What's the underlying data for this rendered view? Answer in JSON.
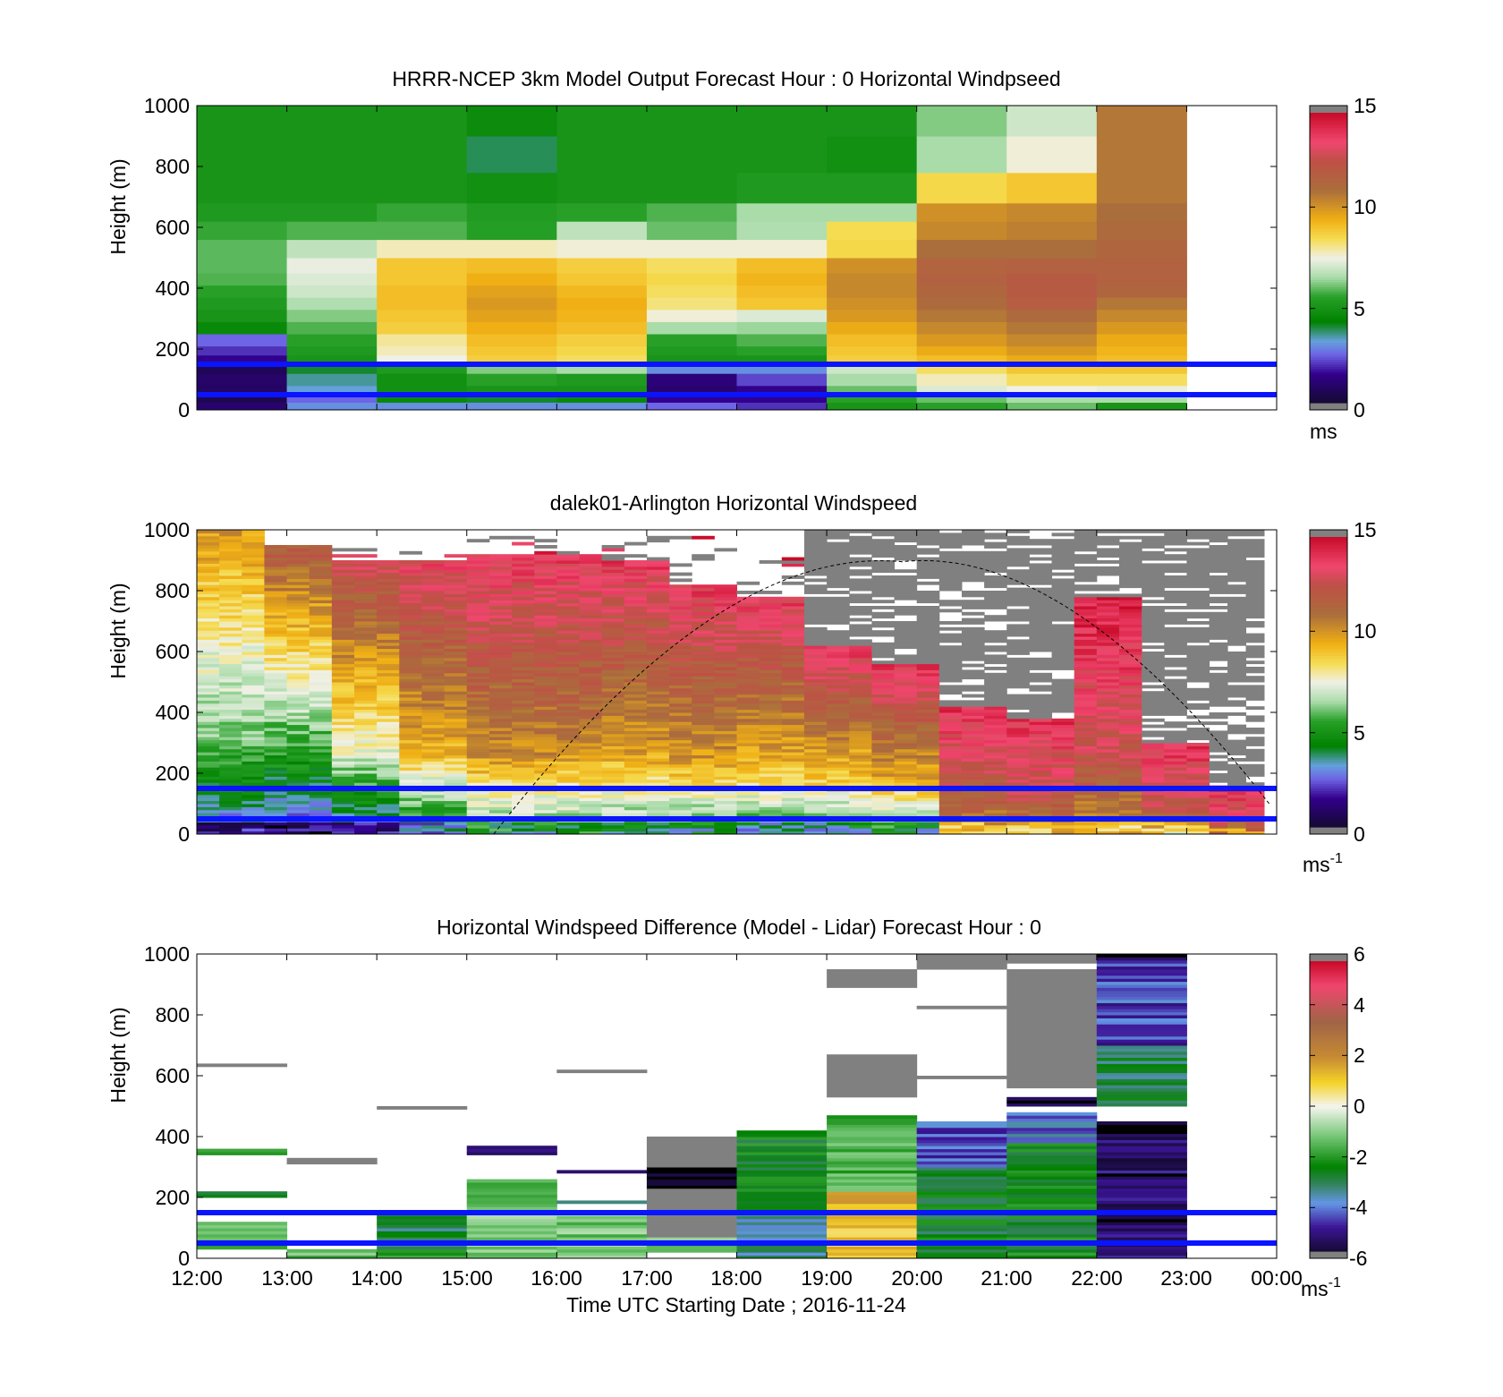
{
  "figure": {
    "xaxis": {
      "label": "Time UTC  Starting Date ; 2016-11-24",
      "tick_labels": [
        "12:00",
        "13:00",
        "14:00",
        "15:00",
        "16:00",
        "17:00",
        "18:00",
        "19:00",
        "20:00",
        "21:00",
        "22:00",
        "23:00",
        "00:00"
      ]
    }
  },
  "chart_data": [
    {
      "type": "heatmap",
      "title": "HRRR-NCEP 3km Model Output   Forecast Hour : 0 Horizontal Windpseed",
      "ylabel": "Height (m)",
      "xlim": [
        "12:00",
        "00:00"
      ],
      "ylim": [
        0,
        1000
      ],
      "y_tick_labels": [
        "0",
        "200",
        "400",
        "600",
        "800",
        "1000"
      ],
      "colorbar": {
        "range": [
          0,
          15
        ],
        "tick_labels": [
          "0",
          "5",
          "10",
          "15"
        ],
        "unit": "ms",
        "unit_sup": ""
      },
      "scale": "wind",
      "hlines": [
        50,
        150
      ],
      "columns": [
        {
          "time": "12:00",
          "levels": [
            0,
            25,
            50,
            80,
            120,
            150,
            180,
            210,
            250,
            290,
            330,
            370,
            410,
            450,
            500,
            560,
            620,
            680,
            780,
            900,
            1000
          ],
          "values": [
            1.0,
            0.5,
            0.8,
            0.9,
            0.6,
            1.5,
            2.0,
            2.5,
            4.5,
            5.0,
            5.2,
            5.5,
            5.8,
            5.9,
            5.9,
            5.6,
            5.2,
            5.0,
            5.0,
            5.0
          ]
        },
        {
          "time": "13:00",
          "levels": [
            0,
            25,
            50,
            80,
            120,
            150,
            180,
            210,
            250,
            290,
            330,
            370,
            410,
            450,
            500,
            560,
            620,
            680,
            780,
            900,
            1000
          ],
          "values": [
            3.0,
            2.5,
            3.2,
            3.5,
            4.0,
            5.0,
            5.2,
            5.5,
            5.8,
            6.2,
            6.6,
            7.0,
            7.2,
            7.4,
            6.8,
            5.8,
            5.2,
            5.0,
            5.0,
            5.0
          ]
        },
        {
          "time": "14:00",
          "levels": [
            0,
            25,
            50,
            80,
            120,
            150,
            180,
            210,
            250,
            290,
            330,
            370,
            410,
            450,
            500,
            560,
            620,
            680,
            780,
            900,
            1000
          ],
          "values": [
            3.0,
            4.5,
            4.8,
            4.8,
            5.2,
            7.5,
            7.8,
            8.0,
            8.8,
            9.0,
            9.2,
            9.2,
            9.0,
            9.0,
            7.8,
            5.8,
            5.6,
            5.0,
            5.0,
            5.0
          ]
        },
        {
          "time": "15:00",
          "levels": [
            0,
            25,
            50,
            80,
            120,
            150,
            180,
            210,
            250,
            290,
            330,
            370,
            410,
            450,
            500,
            560,
            620,
            680,
            780,
            900,
            1000
          ],
          "values": [
            3.0,
            4.0,
            5.0,
            5.5,
            6.2,
            8.8,
            9.0,
            9.2,
            9.5,
            9.8,
            10.0,
            9.8,
            9.5,
            9.2,
            7.8,
            5.4,
            5.3,
            4.8,
            3.8,
            4.6
          ]
        },
        {
          "time": "16:00",
          "levels": [
            0,
            25,
            50,
            80,
            120,
            150,
            180,
            210,
            250,
            290,
            330,
            370,
            410,
            450,
            500,
            560,
            620,
            680,
            780,
            900,
            1000
          ],
          "values": [
            3.0,
            4.5,
            5.0,
            5.2,
            6.5,
            8.4,
            8.6,
            8.8,
            9.2,
            9.4,
            9.5,
            9.3,
            9.0,
            8.8,
            7.6,
            6.8,
            5.5,
            5.0,
            5.0,
            5.0
          ]
        },
        {
          "time": "17:00",
          "levels": [
            0,
            25,
            50,
            80,
            120,
            150,
            180,
            210,
            250,
            290,
            330,
            370,
            410,
            450,
            500,
            560,
            620,
            680,
            780,
            900,
            1000
          ],
          "values": [
            2.5,
            1.5,
            1.0,
            1.2,
            3.0,
            5.0,
            5.2,
            5.5,
            6.5,
            7.6,
            8.2,
            8.4,
            8.6,
            8.4,
            7.6,
            6.0,
            5.8,
            5.0,
            5.0,
            5.0
          ]
        },
        {
          "time": "18:00",
          "levels": [
            0,
            25,
            50,
            80,
            120,
            150,
            180,
            210,
            250,
            290,
            330,
            370,
            410,
            450,
            500,
            560,
            620,
            680,
            780,
            900,
            1000
          ],
          "values": [
            2.0,
            1.5,
            1.5,
            2.2,
            3.0,
            5.0,
            5.5,
            5.8,
            6.4,
            7.2,
            9.0,
            9.2,
            9.4,
            9.2,
            7.6,
            6.6,
            6.5,
            5.2,
            5.0,
            5.0
          ]
        },
        {
          "time": "19:00",
          "levels": [
            0,
            25,
            50,
            80,
            120,
            150,
            180,
            210,
            250,
            290,
            330,
            370,
            410,
            450,
            500,
            560,
            620,
            680,
            780,
            900,
            1000
          ],
          "values": [
            5.0,
            5.5,
            6.0,
            6.5,
            7.0,
            8.8,
            9.0,
            9.2,
            9.6,
            10.0,
            10.2,
            10.4,
            10.4,
            10.2,
            8.6,
            8.5,
            6.5,
            5.2,
            4.8,
            5.0
          ]
        },
        {
          "time": "20:00",
          "levels": [
            0,
            25,
            50,
            80,
            120,
            150,
            180,
            210,
            250,
            290,
            330,
            370,
            410,
            450,
            500,
            560,
            620,
            680,
            780,
            900,
            1000
          ],
          "values": [
            5.5,
            6.0,
            7.2,
            7.8,
            8.4,
            9.2,
            9.6,
            10.0,
            10.4,
            10.8,
            11.2,
            11.4,
            11.6,
            11.5,
            11.0,
            10.4,
            10.2,
            8.6,
            6.5,
            6.2
          ]
        },
        {
          "time": "21:00",
          "levels": [
            0,
            25,
            50,
            80,
            120,
            150,
            180,
            210,
            250,
            290,
            330,
            370,
            410,
            450,
            500,
            560,
            620,
            680,
            780,
            900,
            1000
          ],
          "values": [
            6.0,
            6.5,
            7.5,
            8.4,
            9.0,
            9.6,
            10.0,
            10.4,
            10.8,
            11.2,
            11.8,
            12.0,
            12.0,
            11.6,
            11.0,
            10.6,
            10.4,
            9.0,
            7.6,
            7.0
          ]
        },
        {
          "time": "22:00",
          "levels": [
            0,
            25,
            50,
            80,
            120,
            150,
            180,
            210,
            250,
            290,
            330,
            370,
            410,
            450,
            500,
            560,
            620,
            680,
            780,
            900,
            1000
          ],
          "values": [
            5.0,
            6.5,
            7.4,
            8.4,
            9.0,
            9.2,
            9.4,
            9.6,
            10.0,
            10.4,
            10.8,
            11.4,
            11.6,
            11.6,
            11.4,
            11.2,
            11.0,
            10.8,
            10.8,
            10.8
          ]
        }
      ]
    },
    {
      "type": "heatmap",
      "title": "dalek01-Arlington  Horizontal Windspeed",
      "ylabel": "Height (m)",
      "xlim": [
        "12:00",
        "00:00"
      ],
      "ylim": [
        0,
        1000
      ],
      "y_tick_labels": [
        "0",
        "200",
        "400",
        "600",
        "800",
        "1000"
      ],
      "colorbar": {
        "range": [
          0,
          15
        ],
        "tick_labels": [
          "0",
          "5",
          "10",
          "15"
        ],
        "unit": "ms",
        "unit_sup": "-1"
      },
      "scale": "wind",
      "hlines": [
        50,
        150
      ],
      "arc": {
        "start": [
          "15:18",
          0
        ],
        "peak": [
          "19:50",
          895
        ],
        "end": [
          "23:55",
          100
        ]
      },
      "profiles": [
        {
          "time": "12:00",
          "top": 1000,
          "coverage": 0.7,
          "valid_top": 1000,
          "low": 2.5,
          "mid": 6.0,
          "high": 10.0
        },
        {
          "time": "12:45",
          "top": 950,
          "coverage": 0.45,
          "valid_top": 980,
          "low": 2.0,
          "mid": 5.5,
          "high": 12.0
        },
        {
          "time": "13:30",
          "top": 900,
          "coverage": 0.35,
          "valid_top": 980,
          "low": 2.5,
          "mid": 7.5,
          "high": 13.0
        },
        {
          "time": "14:15",
          "top": 900,
          "coverage": 0.35,
          "valid_top": 980,
          "low": 4.0,
          "mid": 9.5,
          "high": 13.5
        },
        {
          "time": "15:00",
          "top": 920,
          "coverage": 0.35,
          "valid_top": 980,
          "low": 5.5,
          "mid": 10.5,
          "high": 13.8
        },
        {
          "time": "15:45",
          "top": 920,
          "coverage": 0.4,
          "valid_top": 980,
          "low": 5.5,
          "mid": 10.5,
          "high": 13.8
        },
        {
          "time": "16:30",
          "top": 900,
          "coverage": 0.35,
          "valid_top": 980,
          "low": 5.5,
          "mid": 10.0,
          "high": 13.8
        },
        {
          "time": "17:15",
          "top": 820,
          "coverage": 0.45,
          "valid_top": 980,
          "low": 5.0,
          "mid": 10.0,
          "high": 13.8
        },
        {
          "time": "18:00",
          "top": 780,
          "coverage": 0.5,
          "valid_top": 930,
          "low": 5.0,
          "mid": 9.5,
          "high": 13.8
        },
        {
          "time": "18:45",
          "top": 620,
          "coverage": 0.95,
          "valid_top": 620,
          "low": 5.0,
          "mid": 9.0,
          "high": 14.0
        },
        {
          "time": "19:30",
          "top": 560,
          "coverage": 0.95,
          "valid_top": 560,
          "low": 5.5,
          "mid": 9.5,
          "high": 14.0
        },
        {
          "time": "20:15",
          "top": 420,
          "coverage": 0.95,
          "valid_top": 420,
          "low": 10.0,
          "mid": 12.0,
          "high": 14.0
        },
        {
          "time": "21:00",
          "top": 380,
          "coverage": 0.95,
          "valid_top": 380,
          "low": 10.0,
          "mid": 12.5,
          "high": 14.0
        },
        {
          "time": "21:45",
          "top": 780,
          "coverage": 0.95,
          "valid_top": 800,
          "low": 10.0,
          "mid": 12.5,
          "high": 14.5
        },
        {
          "time": "22:30",
          "top": 300,
          "coverage": 0.95,
          "valid_top": 300,
          "low": 10.0,
          "mid": 12.5,
          "high": 14.0
        },
        {
          "time": "23:15",
          "top": 160,
          "coverage": 0.95,
          "valid_top": 160,
          "low": 12.0,
          "mid": 13.0,
          "high": 14.0
        }
      ]
    },
    {
      "type": "heatmap",
      "title": "Horizontal Windspeed Difference (Model - Lidar) Forecast Hour : 0",
      "ylabel": "Height (m)",
      "xlim": [
        "12:00",
        "00:00"
      ],
      "ylim": [
        0,
        1000
      ],
      "y_tick_labels": [
        "0",
        "200",
        "400",
        "600",
        "800",
        "1000"
      ],
      "colorbar": {
        "range": [
          -6,
          6
        ],
        "tick_labels": [
          "-6",
          "-4",
          "-2",
          "0",
          "2",
          "4",
          "6"
        ],
        "unit": "ms",
        "unit_sup": "-1"
      },
      "scale": "diff",
      "hlines": [
        50,
        150
      ],
      "columns": [
        {
          "time": "12:00",
          "segments": [
            [
              30,
              120,
              -1.6
            ],
            [
              200,
              220,
              -3
            ],
            [
              340,
              360,
              -2.5
            ],
            [
              630,
              640,
              null
            ]
          ]
        },
        {
          "time": "13:00",
          "segments": [
            [
              0,
              30,
              -1.5
            ],
            [
              310,
              330,
              null
            ]
          ]
        },
        {
          "time": "14:00",
          "segments": [
            [
              0,
              30,
              -1.8
            ],
            [
              30,
              150,
              -3
            ],
            [
              490,
              500,
              null
            ]
          ]
        },
        {
          "time": "15:00",
          "segments": [
            [
              0,
              150,
              -1.0
            ],
            [
              160,
              260,
              -1.5
            ],
            [
              340,
              370,
              -5.5
            ]
          ]
        },
        {
          "time": "16:00",
          "segments": [
            [
              0,
              150,
              -1.2
            ],
            [
              180,
              190,
              -3
            ],
            [
              280,
              290,
              -5
            ],
            [
              610,
              620,
              null
            ]
          ]
        },
        {
          "time": "17:00",
          "segments": [
            [
              20,
              70,
              -1.5
            ],
            [
              70,
              230,
              null
            ],
            [
              230,
              300,
              -6
            ],
            [
              300,
              400,
              null
            ]
          ]
        },
        {
          "time": "18:00",
          "segments": [
            [
              0,
              150,
              -3.5
            ],
            [
              150,
              420,
              -2.6
            ]
          ]
        },
        {
          "time": "19:00",
          "segments": [
            [
              0,
              30,
              1.0
            ],
            [
              30,
              220,
              1.2
            ],
            [
              220,
              470,
              -1.6
            ],
            [
              530,
              670,
              null
            ],
            [
              890,
              950,
              null
            ]
          ]
        },
        {
          "time": "20:00",
          "segments": [
            [
              0,
              300,
              -2.7
            ],
            [
              300,
              450,
              -4.5
            ],
            [
              590,
              600,
              null
            ],
            [
              820,
              830,
              null
            ],
            [
              950,
              1000,
              null
            ]
          ]
        },
        {
          "time": "21:00",
          "segments": [
            [
              0,
              380,
              -2.6
            ],
            [
              380,
              480,
              -4.2
            ],
            [
              500,
              530,
              -6
            ],
            [
              560,
              950,
              null
            ],
            [
              970,
              1000,
              null
            ]
          ]
        },
        {
          "time": "22:00",
          "segments": [
            [
              0,
              450,
              -5.5
            ],
            [
              500,
              700,
              -3
            ],
            [
              700,
              980,
              -4.6
            ],
            [
              980,
              1000,
              -6
            ]
          ]
        }
      ]
    }
  ]
}
